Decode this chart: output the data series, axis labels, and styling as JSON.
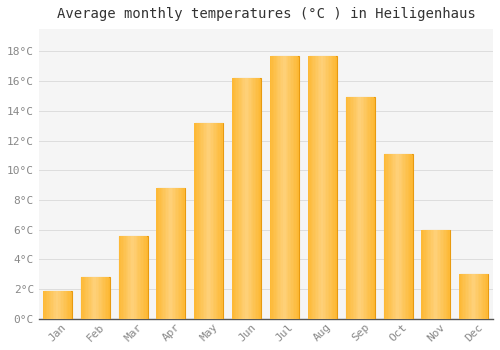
{
  "title": "Average monthly temperatures (°C ) in Heiligenhaus",
  "months": [
    "Jan",
    "Feb",
    "Mar",
    "Apr",
    "May",
    "Jun",
    "Jul",
    "Aug",
    "Sep",
    "Oct",
    "Nov",
    "Dec"
  ],
  "values": [
    1.9,
    2.8,
    5.6,
    8.8,
    13.2,
    16.2,
    17.7,
    17.7,
    14.9,
    11.1,
    6.0,
    3.0
  ],
  "bar_color": "#FDB833",
  "bar_edge_color": "#E89A10",
  "background_color": "#FFFFFF",
  "plot_bg_color": "#F5F5F5",
  "grid_color": "#DDDDDD",
  "yticks": [
    0,
    2,
    4,
    6,
    8,
    10,
    12,
    14,
    16,
    18
  ],
  "ylim": [
    0,
    19.5
  ],
  "title_fontsize": 10,
  "tick_fontsize": 8,
  "tick_color": "#888888"
}
